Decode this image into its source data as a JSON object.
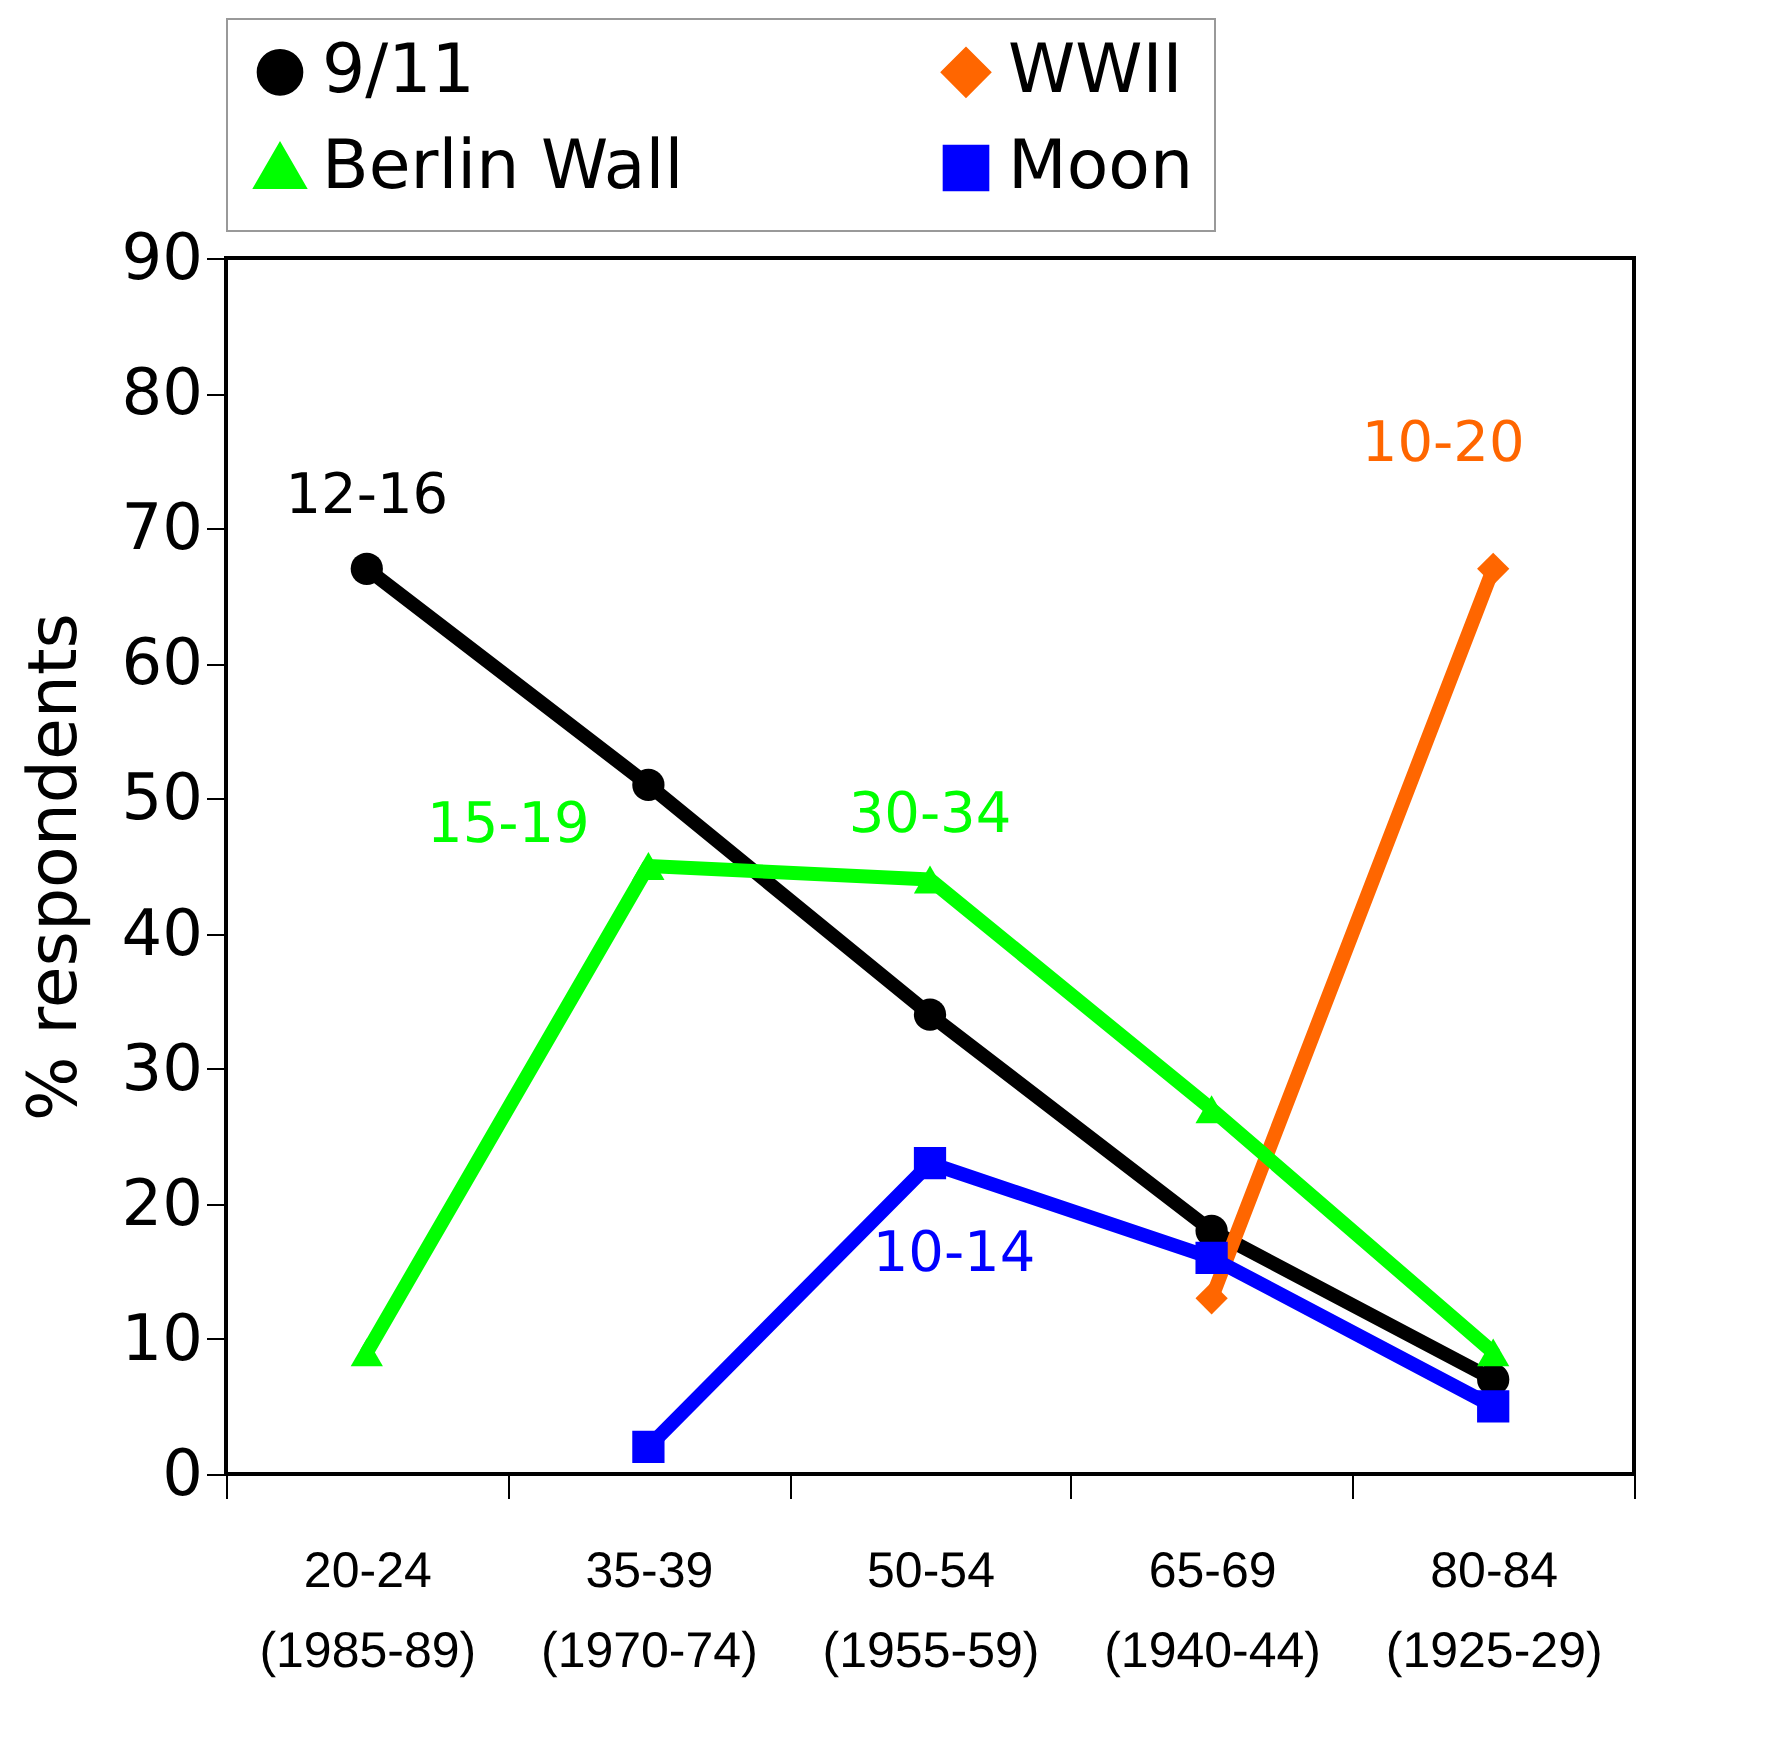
{
  "chart_data": {
    "type": "line",
    "categories": [
      "20-24\n(1985-89)",
      "35-39\n(1970-74)",
      "50-54\n(1955-59)",
      "65-69\n(1940-44)",
      "80-84\n(1925-29)"
    ],
    "ylabel": "% respondents",
    "ylim": [
      0,
      90
    ],
    "yticks": [
      0,
      10,
      20,
      30,
      40,
      50,
      60,
      70,
      80,
      90
    ],
    "grid": false,
    "legend": "top",
    "series": [
      {
        "name": "9/11",
        "color": "#000000",
        "marker": "circle",
        "values": [
          67,
          51,
          34,
          18,
          7
        ]
      },
      {
        "name": "WWII",
        "color": "#ff6600",
        "marker": "diamond",
        "values": [
          null,
          null,
          null,
          13,
          67
        ]
      },
      {
        "name": "Berlin Wall",
        "color": "#00ff00",
        "marker": "triangle",
        "values": [
          9,
          45,
          44,
          27,
          9
        ]
      },
      {
        "name": "Moon",
        "color": "#0000ff",
        "marker": "square",
        "values": [
          null,
          2,
          23,
          16,
          5
        ]
      }
    ],
    "annotations": [
      {
        "text": "12-16",
        "x": "20-24\n(1985-89)",
        "y": 67
      },
      {
        "text": "15-19",
        "x": "35-39\n(1970-74)",
        "y": 45
      },
      {
        "text": "30-34",
        "x": "50-54\n(1955-59)",
        "y": 44
      },
      {
        "text": "10-14",
        "x": "50-54\n(1955-59)",
        "y": 23
      },
      {
        "text": "10-20",
        "x": "80-84\n(1925-29)",
        "y": 67
      }
    ]
  }
}
